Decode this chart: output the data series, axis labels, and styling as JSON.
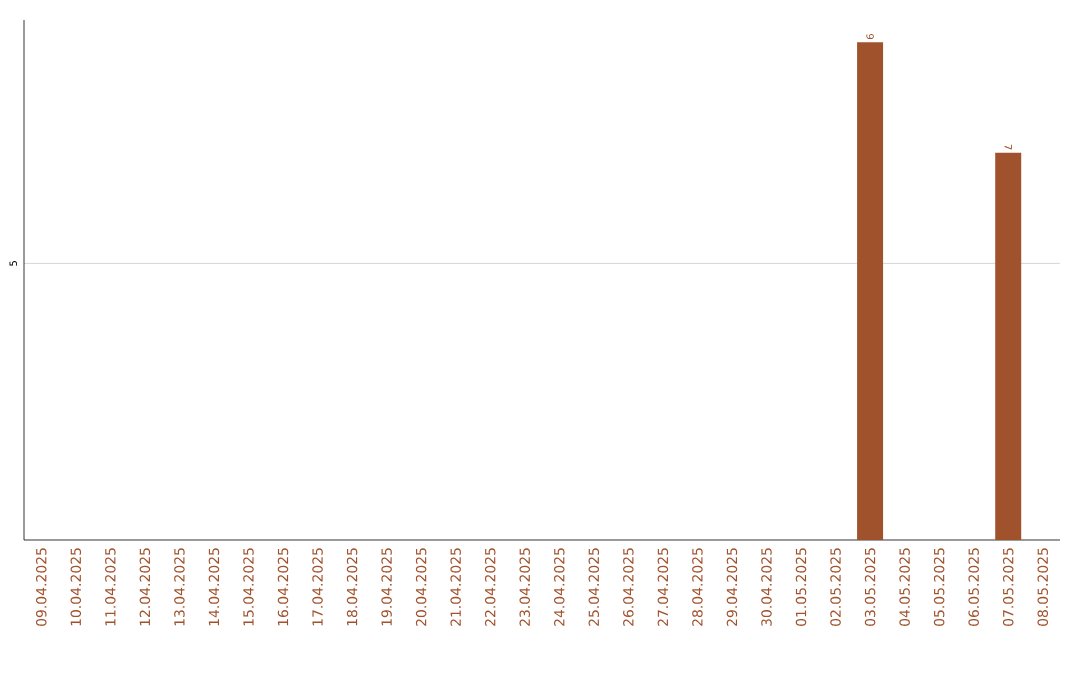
{
  "chart_data": {
    "type": "bar",
    "categories": [
      "09.04.2025",
      "10.04.2025",
      "11.04.2025",
      "12.04.2025",
      "13.04.2025",
      "14.04.2025",
      "15.04.2025",
      "16.04.2025",
      "17.04.2025",
      "18.04.2025",
      "19.04.2025",
      "20.04.2025",
      "21.04.2025",
      "22.04.2025",
      "23.04.2025",
      "24.04.2025",
      "25.04.2025",
      "26.04.2025",
      "27.04.2025",
      "28.04.2025",
      "29.04.2025",
      "30.04.2025",
      "01.05.2025",
      "02.05.2025",
      "03.05.2025",
      "04.05.2025",
      "05.05.2025",
      "06.05.2025",
      "07.05.2025",
      "08.05.2025"
    ],
    "values": [
      null,
      null,
      null,
      null,
      null,
      null,
      null,
      null,
      null,
      null,
      null,
      null,
      null,
      null,
      null,
      null,
      null,
      null,
      null,
      null,
      null,
      null,
      null,
      null,
      9,
      null,
      null,
      null,
      7,
      null
    ],
    "data_labels": true,
    "color": "#a0522d",
    "ylim": [
      0,
      9.4
    ],
    "yticks": [
      5
    ],
    "grid": "y"
  }
}
